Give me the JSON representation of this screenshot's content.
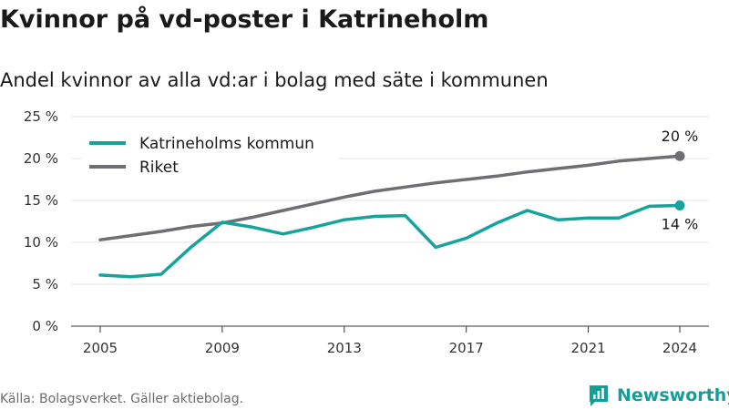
{
  "title": "Kvinnor på vd-poster i Katrineholm",
  "subtitle": "Andel kvinnor av alla vd:ar i bolag med säte i kommunen",
  "source": "Källa: Bolagsverket. Gäller aktiebolag.",
  "brand": "Newsworthy",
  "colors": {
    "katrineholm": "#15a39b",
    "riket": "#6e6e73",
    "grid": "#e3e3e3",
    "axis": "#333333",
    "brand": "#139e97"
  },
  "chart_data": {
    "type": "line",
    "x": [
      2005,
      2006,
      2007,
      2008,
      2009,
      2010,
      2011,
      2012,
      2013,
      2014,
      2015,
      2016,
      2017,
      2018,
      2019,
      2020,
      2021,
      2022,
      2023,
      2024
    ],
    "xticks": [
      2005,
      2009,
      2013,
      2017,
      2021,
      2024
    ],
    "yticks": [
      0,
      5,
      10,
      15,
      20,
      25
    ],
    "ytick_labels": [
      "0 %",
      "5 %",
      "10 %",
      "15 %",
      "20 %",
      "25 %"
    ],
    "ylim": [
      0,
      25
    ],
    "xlim": [
      2005,
      2024
    ],
    "grid": true,
    "legend_position": "top-left",
    "series": [
      {
        "name": "Katrineholms kommun",
        "color": "#15a39b",
        "values": [
          6.1,
          5.9,
          6.2,
          9.5,
          12.4,
          11.8,
          11.0,
          11.8,
          12.7,
          13.1,
          13.2,
          9.4,
          10.5,
          12.3,
          13.8,
          12.7,
          12.9,
          12.9,
          14.3,
          14.4
        ],
        "end_label": "14 %"
      },
      {
        "name": "Riket",
        "color": "#6e6e73",
        "values": [
          10.3,
          10.8,
          11.3,
          11.9,
          12.3,
          13.0,
          13.8,
          14.6,
          15.4,
          16.1,
          16.6,
          17.1,
          17.5,
          17.9,
          18.4,
          18.8,
          19.2,
          19.7,
          20.0,
          20.3
        ],
        "end_label": "20 %"
      }
    ]
  }
}
